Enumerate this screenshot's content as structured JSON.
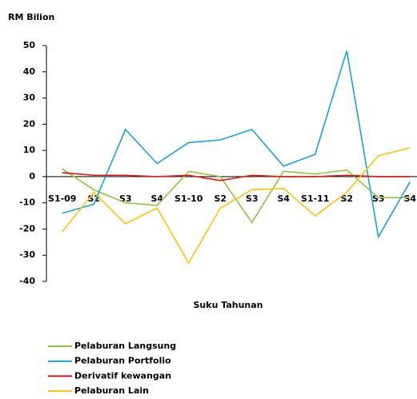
{
  "chart_data": {
    "type": "line",
    "title": "RM Bilion",
    "xlabel": "Suku Tahunan",
    "categories": [
      "S1-09",
      "S2",
      "S3",
      "S4",
      "S1-10",
      "S2",
      "S3",
      "S4",
      "S1-11",
      "S2",
      "S3",
      "S4"
    ],
    "series": [
      {
        "name": "Pelaburan Langsung",
        "color": "#8dc63f",
        "values": [
          3,
          -5,
          -10,
          -11,
          2,
          0,
          -17.5,
          2,
          1,
          2.5,
          -8,
          -8
        ]
      },
      {
        "name": "Pelaburan Portfolio",
        "color": "#1ba1d9",
        "values": [
          -14,
          -10.5,
          18,
          5,
          13,
          14,
          18,
          4,
          8.5,
          48,
          -23,
          -2
        ]
      },
      {
        "name": "Derivatif kewangan",
        "color": "#e3120b",
        "values": [
          1.5,
          0.5,
          0.5,
          0,
          0.5,
          -1.5,
          0.5,
          0,
          0,
          0.5,
          0,
          0
        ]
      },
      {
        "name": "Pelaburan Lain",
        "color": "#ffc20e",
        "values": [
          -21,
          -6,
          -18,
          -12,
          -33,
          -12,
          -5,
          -4.5,
          -15,
          -6,
          8,
          11
        ]
      }
    ],
    "ylim": [
      -40,
      50
    ],
    "yticks": [
      50,
      40,
      30,
      20,
      10,
      0,
      -10,
      -20,
      -30,
      -40
    ],
    "grid": false,
    "legend": "bottom"
  }
}
